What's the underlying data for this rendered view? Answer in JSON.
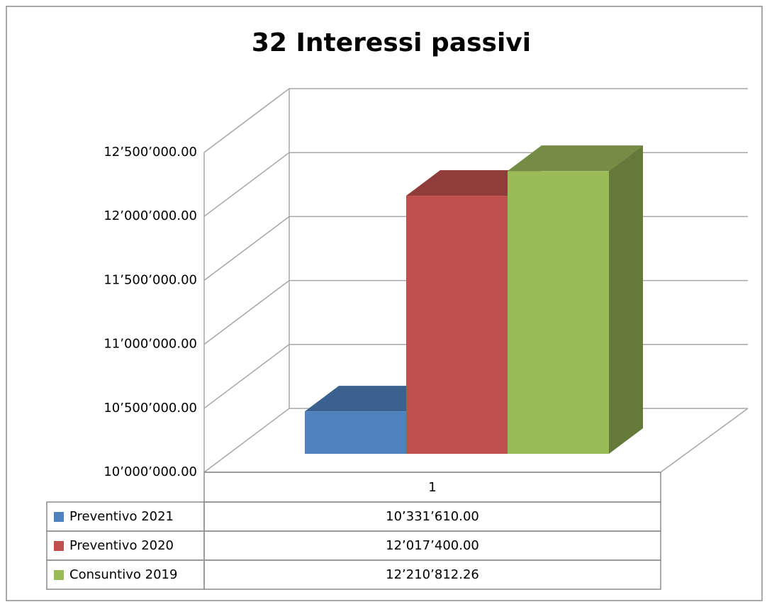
{
  "chart_data": {
    "type": "bar3d",
    "title": "32 Interessi passivi",
    "categories": [
      "1"
    ],
    "series": [
      {
        "name": "Preventivo 2021",
        "color": "#4f81bd",
        "values": [
          10331610
        ],
        "value_labels": [
          "10’331’610.00"
        ]
      },
      {
        "name": "Preventivo 2020",
        "color": "#c0504d",
        "values": [
          12017400
        ],
        "value_labels": [
          "12’017’400.00"
        ]
      },
      {
        "name": "Consuntivo 2019",
        "color": "#9bbb59",
        "values": [
          12210812.26
        ],
        "value_labels": [
          "12’210’812.26"
        ]
      }
    ],
    "ylim": [
      10000000,
      12500000
    ],
    "yticks": [
      {
        "value": 10000000,
        "label": "10’000’000.00"
      },
      {
        "value": 10500000,
        "label": "10’500’000.00"
      },
      {
        "value": 11000000,
        "label": "11’000’000.00"
      },
      {
        "value": 11500000,
        "label": "11’500’000.00"
      },
      {
        "value": 12000000,
        "label": "12’000’000.00"
      },
      {
        "value": 12500000,
        "label": "12’500’000.00"
      }
    ],
    "grid": true
  }
}
